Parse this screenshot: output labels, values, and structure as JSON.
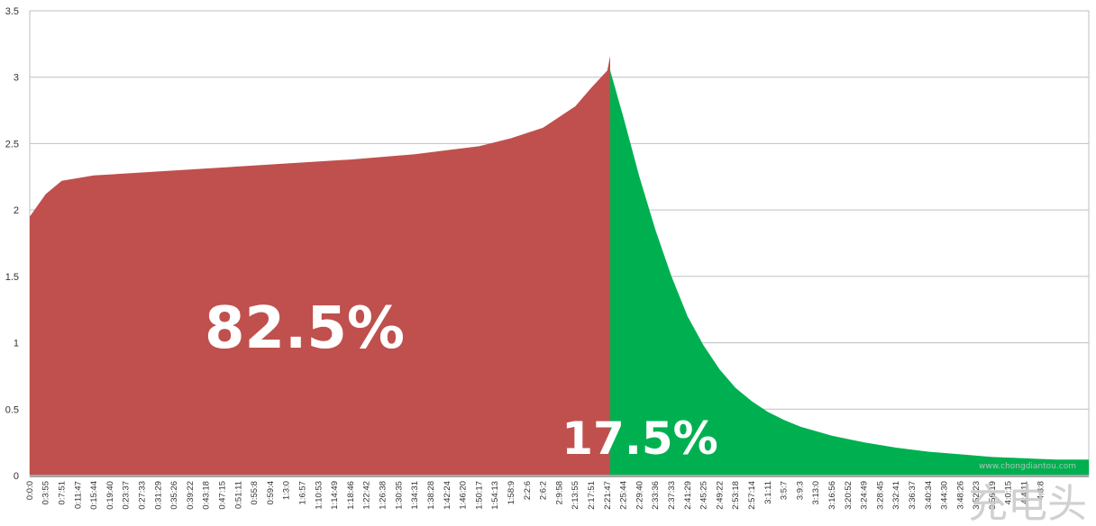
{
  "chart_data": {
    "type": "area",
    "ylim": [
      0,
      3.5
    ],
    "yticks": [
      "0",
      "0.5",
      "1",
      "1.5",
      "2",
      "2.5",
      "3",
      "3.5"
    ],
    "grid": true,
    "x_tick_labels": [
      "0:0:0",
      "0:3:55",
      "0:7:51",
      "0:11:47",
      "0:15:44",
      "0:19:40",
      "0:23:37",
      "0:27:33",
      "0:31:29",
      "0:35:26",
      "0:39:22",
      "0:43:18",
      "0:47:15",
      "0:51:11",
      "0:55:8",
      "0:59:4",
      "1:3:0",
      "1:6:57",
      "1:10:53",
      "1:14:49",
      "1:18:46",
      "1:22:42",
      "1:26:38",
      "1:30:35",
      "1:34:31",
      "1:38:28",
      "1:42:24",
      "1:46:20",
      "1:50:17",
      "1:54:13",
      "1:58:9",
      "2:2:6",
      "2:6:2",
      "2:9:58",
      "2:13:55",
      "2:17:51",
      "2:21:47",
      "2:25:44",
      "2:29:40",
      "2:33:36",
      "2:37:33",
      "2:41:29",
      "2:45:25",
      "2:49:22",
      "2:53:18",
      "2:57:14",
      "3:1:11",
      "3:5:7",
      "3:9:3",
      "3:13:0",
      "3:16:56",
      "3:20:52",
      "3:24:49",
      "3:28:45",
      "3:32:41",
      "3:36:37",
      "3:40:34",
      "3:44:30",
      "3:48:26",
      "3:52:23",
      "3:56:19",
      "4:0:15",
      "4:4:11",
      "4:8:8"
    ],
    "series": [
      {
        "segment": "left",
        "color": "#c0504d",
        "x": [
          "0:0:0",
          "0:3:55",
          "0:7:51",
          "0:15:44",
          "0:31:29",
          "0:47:15",
          "1:3:0",
          "1:18:46",
          "1:34:31",
          "1:50:17",
          "1:58:9",
          "2:6:2",
          "2:13:55",
          "2:17:51",
          "2:21:47",
          "2:22:30"
        ],
        "values": [
          1.95,
          2.12,
          2.22,
          2.26,
          2.29,
          2.32,
          2.35,
          2.38,
          2.42,
          2.48,
          2.54,
          2.62,
          2.78,
          2.92,
          3.05,
          3.16
        ]
      },
      {
        "segment": "right",
        "color": "#00b050",
        "x": [
          "2:22:30",
          "2:25:44",
          "2:29:40",
          "2:33:36",
          "2:37:33",
          "2:41:29",
          "2:45:25",
          "2:49:22",
          "2:53:18",
          "2:57:14",
          "3:1:11",
          "3:5:7",
          "3:9:3",
          "3:16:56",
          "3:24:49",
          "3:32:41",
          "3:40:34",
          "3:48:26",
          "3:56:19",
          "4:4:11",
          "4:12:4",
          "4:20:0"
        ],
        "values": [
          3.05,
          2.7,
          2.25,
          1.85,
          1.5,
          1.2,
          0.98,
          0.8,
          0.66,
          0.56,
          0.48,
          0.42,
          0.37,
          0.3,
          0.25,
          0.21,
          0.18,
          0.16,
          0.14,
          0.13,
          0.12,
          0.12
        ]
      }
    ],
    "annotations": [
      {
        "text": "82.5%",
        "segment": "left"
      },
      {
        "text": "17.5%",
        "segment": "right"
      }
    ]
  },
  "watermark": {
    "logo_text": "充电头",
    "url_text": "www.chongdiantou.com"
  }
}
